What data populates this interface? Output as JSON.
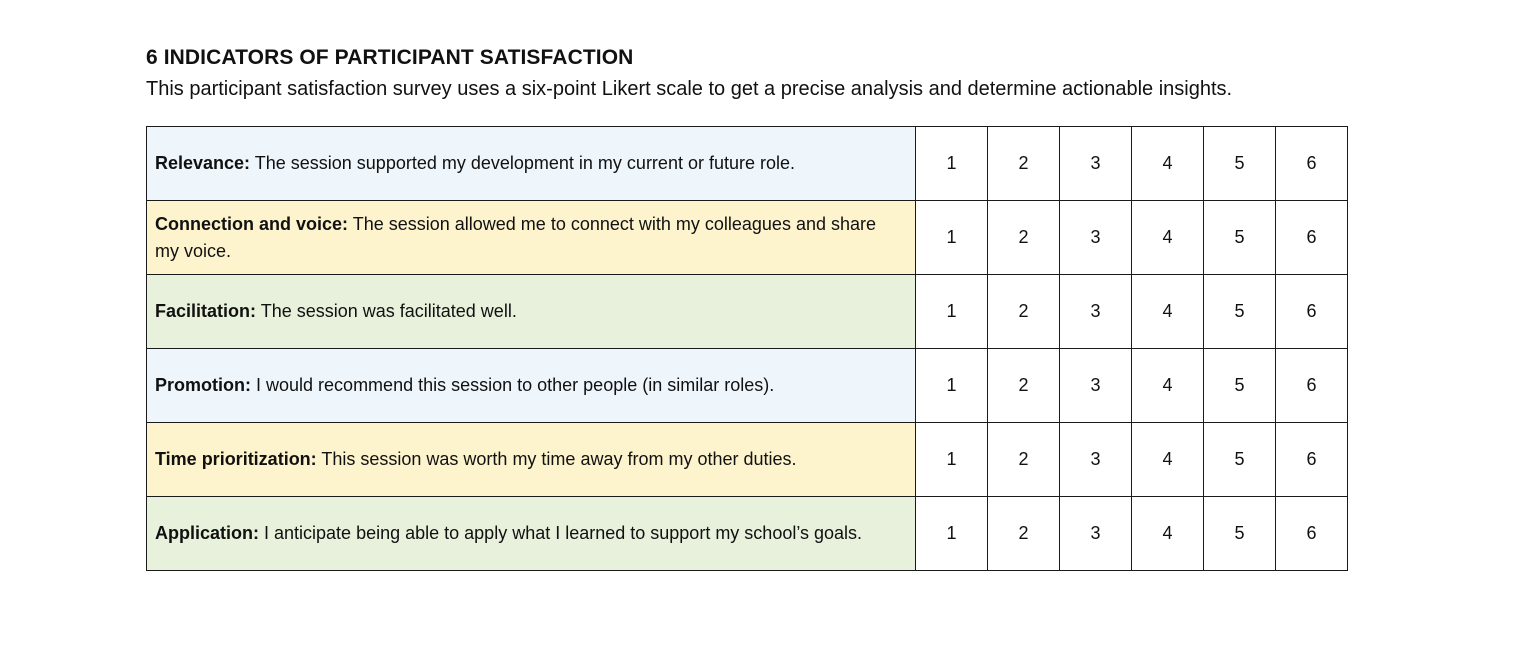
{
  "header": {
    "title": "6 INDICATORS OF PARTICIPANT SATISFACTION",
    "subtitle": "This participant satisfaction survey uses a six-point Likert scale to get a precise analysis and determine actionable insights."
  },
  "colors": {
    "blue_row": "#eef6fc",
    "yellow_row": "#fdf4cd",
    "green_row": "#e8f1dc"
  },
  "scale": [
    "1",
    "2",
    "3",
    "4",
    "5",
    "6"
  ],
  "rows": [
    {
      "label": "Relevance:",
      "text": "The session supported my development in my current or future role.",
      "color": "#eef6fc"
    },
    {
      "label": "Connection and voice:",
      "text": "The session allowed me to connect with my colleagues and share my voice.",
      "color": "#fdf4cd"
    },
    {
      "label": "Facilitation:",
      "text": "The session was facilitated well.",
      "color": "#e8f1dc"
    },
    {
      "label": "Promotion:",
      "text": "I would recommend this session to other people (in similar roles).",
      "color": "#eef6fc"
    },
    {
      "label": "Time prioritization:",
      "text": "This session was worth my time away from my other duties.",
      "color": "#fdf4cd"
    },
    {
      "label": "Application:",
      "text": "I anticipate being able to apply what I learned to support my school’s goals.",
      "color": "#e8f1dc"
    }
  ]
}
